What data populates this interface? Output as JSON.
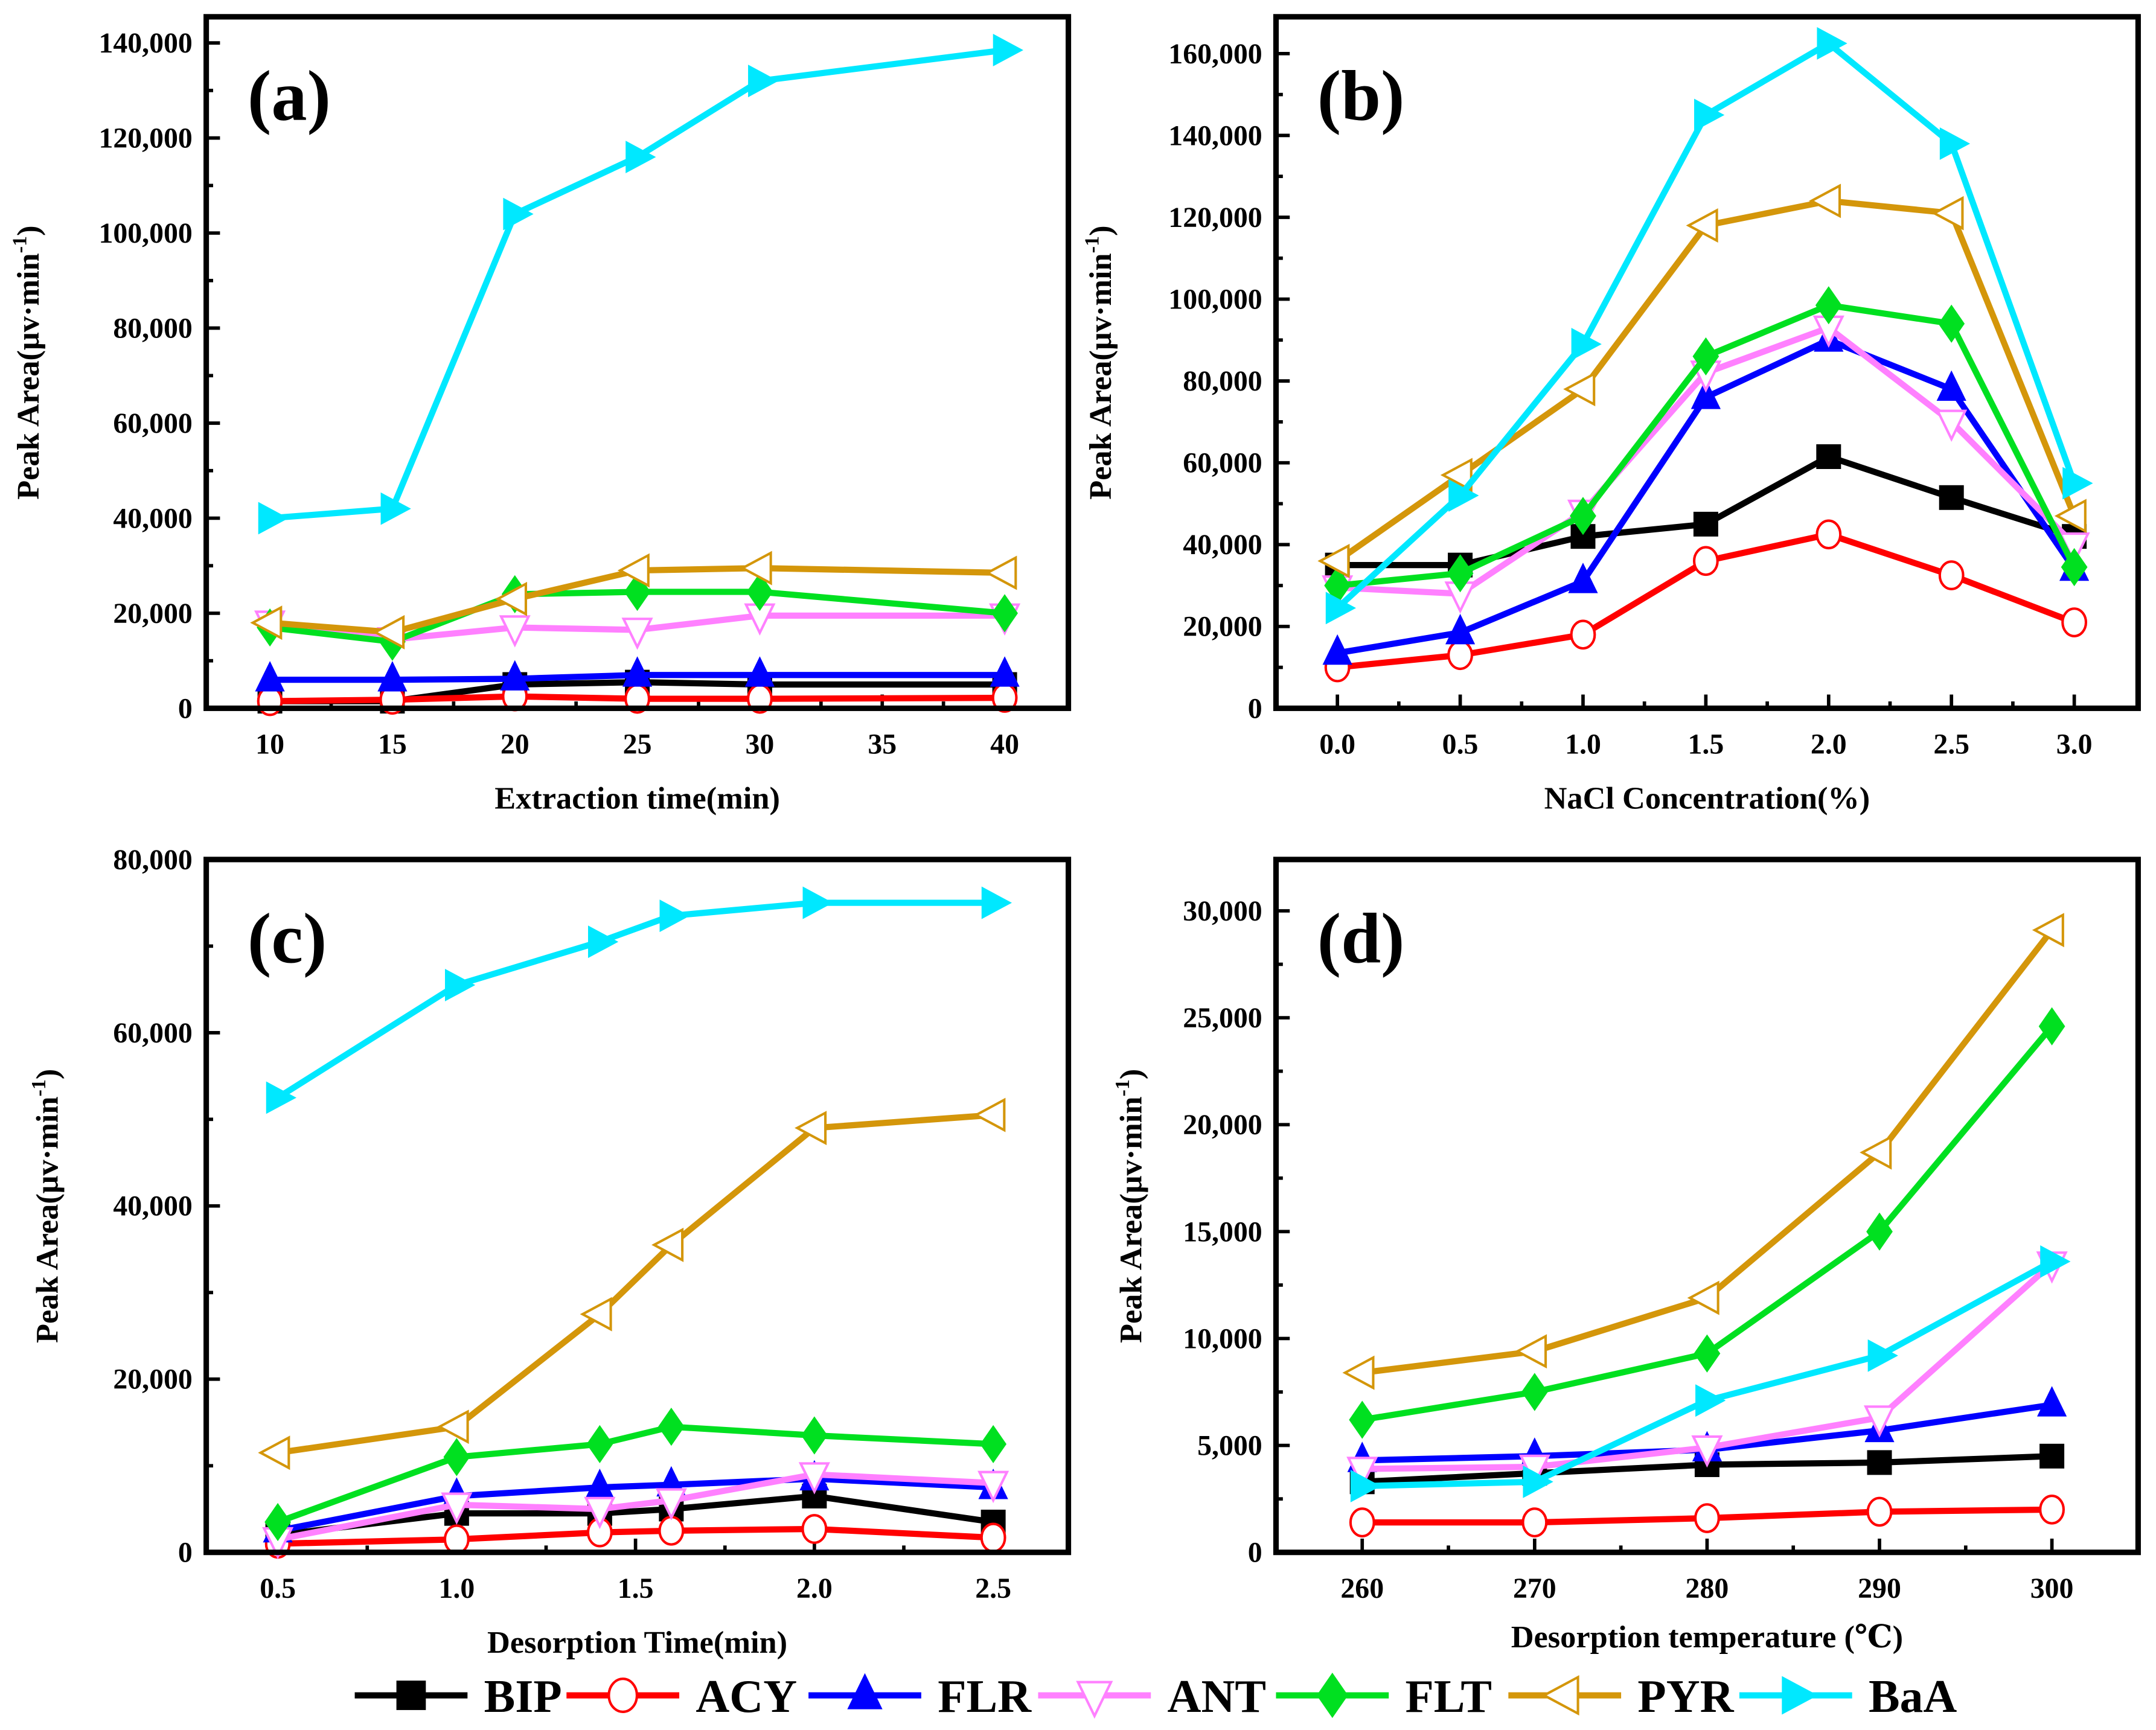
{
  "legend": [
    {
      "name": "BIP",
      "color": "#000000",
      "marker": "square-filled"
    },
    {
      "name": "ACY",
      "color": "#ff0000",
      "marker": "circle-open"
    },
    {
      "name": "FLR",
      "color": "#0000ff",
      "marker": "triangle-up-filled"
    },
    {
      "name": "ANT",
      "color": "#ff80ff",
      "marker": "triangle-down-open"
    },
    {
      "name": "FLT",
      "color": "#00e020",
      "marker": "diamond-filled"
    },
    {
      "name": "PYR",
      "color": "#d4960a",
      "marker": "triangle-left-open"
    },
    {
      "name": "BaA",
      "color": "#00e8ff",
      "marker": "triangle-right-filled"
    }
  ],
  "chart_data": [
    {
      "type": "line",
      "title": "(a)",
      "xlabel": "Extraction time(min)",
      "ylabel": {
        "main": "Peak Area(μv·min",
        "sup": "-1",
        "close": ")"
      },
      "xlim": [
        7.4,
        42.6
      ],
      "ylim": [
        0,
        145500
      ],
      "xticks": [
        10,
        15,
        20,
        25,
        30,
        35,
        40
      ],
      "xtick_labels": [
        "10",
        "15",
        "20",
        "25",
        "30",
        "35",
        "40"
      ],
      "yticks": [
        0,
        20000,
        40000,
        60000,
        80000,
        100000,
        120000,
        140000
      ],
      "ytick_labels": [
        "0",
        "20,000",
        "40,000",
        "60,000",
        "80,000",
        "100,000",
        "120,000",
        "140,000"
      ],
      "x": [
        10,
        15,
        20,
        25,
        30,
        40
      ],
      "series": [
        {
          "name": "BIP",
          "values": [
            1500,
            1500,
            5000,
            5500,
            5000,
            5000
          ]
        },
        {
          "name": "ACY",
          "values": [
            1500,
            1800,
            2500,
            2000,
            2000,
            2200
          ]
        },
        {
          "name": "FLR",
          "values": [
            6000,
            6000,
            6200,
            7000,
            7000,
            7000
          ]
        },
        {
          "name": "ANT",
          "values": [
            18000,
            14500,
            17000,
            16500,
            19500,
            19500
          ]
        },
        {
          "name": "FLT",
          "values": [
            17000,
            14000,
            24000,
            24500,
            24500,
            20000
          ]
        },
        {
          "name": "PYR",
          "values": [
            18000,
            16000,
            23000,
            29000,
            29500,
            28500
          ]
        },
        {
          "name": "BaA",
          "values": [
            40000,
            42000,
            104000,
            116000,
            132000,
            138500
          ]
        }
      ]
    },
    {
      "type": "line",
      "title": "(b)",
      "xlabel": "NaCl Concentration(%)",
      "ylabel": {
        "main": "Peak Area(μv·min",
        "sup": "-1",
        "close": ")"
      },
      "xlim": [
        -0.25,
        3.26
      ],
      "ylim": [
        0,
        169000
      ],
      "xticks": [
        0,
        0.5,
        1.0,
        1.5,
        2.0,
        2.5,
        3.0
      ],
      "xtick_labels": [
        "0.0",
        "0.5",
        "1.0",
        "1.5",
        "2.0",
        "2.5",
        "3.0"
      ],
      "yticks": [
        0,
        20000,
        40000,
        60000,
        80000,
        100000,
        120000,
        140000,
        160000
      ],
      "ytick_labels": [
        "0",
        "20,000",
        "40,000",
        "60,000",
        "80,000",
        "100,000",
        "120,000",
        "140,000",
        "160,000"
      ],
      "x": [
        0,
        0.5,
        1.0,
        1.5,
        2.0,
        2.5,
        3.0
      ],
      "series": [
        {
          "name": "BIP",
          "values": [
            35000,
            35000,
            42000,
            45000,
            61500,
            51500,
            42000
          ]
        },
        {
          "name": "ACY",
          "values": [
            10000,
            13000,
            18000,
            36000,
            42500,
            32500,
            21000
          ]
        },
        {
          "name": "FLR",
          "values": [
            13500,
            18500,
            31000,
            76000,
            90000,
            78000,
            34000
          ]
        },
        {
          "name": "ANT",
          "values": [
            29500,
            28000,
            48000,
            82000,
            93000,
            70000,
            40000
          ]
        },
        {
          "name": "FLT",
          "values": [
            30000,
            33000,
            47000,
            86000,
            98500,
            94000,
            34500
          ]
        },
        {
          "name": "PYR",
          "values": [
            36000,
            57000,
            78000,
            118000,
            124000,
            121000,
            47000
          ]
        },
        {
          "name": "BaA",
          "values": [
            24500,
            52000,
            89000,
            145000,
            162500,
            138000,
            55000
          ]
        }
      ]
    },
    {
      "type": "line",
      "title": "(c)",
      "xlabel": "Desorption Time(min)",
      "ylabel": {
        "main": "Peak Area(μv·min",
        "sup": "-1",
        "close": ")"
      },
      "xlim": [
        0.3,
        2.71
      ],
      "ylim": [
        0,
        80000
      ],
      "xticks": [
        0.5,
        1.0,
        1.5,
        2.0,
        2.5
      ],
      "xtick_labels": [
        "0.5",
        "1.0",
        "1.5",
        "2.0",
        "2.5"
      ],
      "yticks": [
        0,
        20000,
        40000,
        60000,
        80000
      ],
      "ytick_labels": [
        "0",
        "20,000",
        "40,000",
        "60,000",
        "80,000"
      ],
      "x": [
        0.5,
        1.0,
        1.4,
        1.6,
        2.0,
        2.5
      ],
      "series": [
        {
          "name": "BIP",
          "values": [
            2000,
            4500,
            4500,
            5000,
            6500,
            3500
          ]
        },
        {
          "name": "ACY",
          "values": [
            1000,
            1500,
            2300,
            2500,
            2700,
            1700
          ]
        },
        {
          "name": "FLR",
          "values": [
            2500,
            6500,
            7500,
            7800,
            8500,
            7500
          ]
        },
        {
          "name": "ANT",
          "values": [
            1500,
            5500,
            5000,
            6000,
            9000,
            8000
          ]
        },
        {
          "name": "FLT",
          "values": [
            3500,
            11000,
            12500,
            14500,
            13500,
            12500
          ]
        },
        {
          "name": "PYR",
          "values": [
            11500,
            14500,
            27500,
            35500,
            49000,
            50500
          ]
        },
        {
          "name": "BaA",
          "values": [
            52500,
            65500,
            70500,
            73500,
            75000,
            75000
          ]
        }
      ]
    },
    {
      "type": "line",
      "title": "(d)",
      "xlabel": "Desorption temperature (℃)",
      "ylabel": {
        "main": "Peak Area(μv·min",
        "sup": "-1",
        "close": ")"
      },
      "xlim": [
        255,
        305
      ],
      "ylim": [
        0,
        32400
      ],
      "xticks": [
        260,
        270,
        280,
        290,
        300
      ],
      "xtick_labels": [
        "260",
        "270",
        "280",
        "290",
        "300"
      ],
      "yticks": [
        0,
        5000,
        10000,
        15000,
        20000,
        25000,
        30000
      ],
      "ytick_labels": [
        "0",
        "5,000",
        "10,000",
        "15,000",
        "20,000",
        "25,000",
        "30,000"
      ],
      "x": [
        260,
        270,
        280,
        290,
        300
      ],
      "series": [
        {
          "name": "BIP",
          "values": [
            3300,
            3700,
            4100,
            4200,
            4500
          ]
        },
        {
          "name": "ACY",
          "values": [
            1400,
            1400,
            1600,
            1900,
            2000
          ]
        },
        {
          "name": "FLR",
          "values": [
            4300,
            4500,
            4800,
            5700,
            6900
          ]
        },
        {
          "name": "ANT",
          "values": [
            3900,
            4000,
            4900,
            6300,
            13500
          ]
        },
        {
          "name": "FLT",
          "values": [
            6200,
            7500,
            9300,
            15000,
            24600
          ]
        },
        {
          "name": "PYR",
          "values": [
            8400,
            9400,
            11900,
            18700,
            29100
          ]
        },
        {
          "name": "BaA",
          "values": [
            3100,
            3300,
            7100,
            9200,
            13600
          ]
        }
      ]
    }
  ]
}
